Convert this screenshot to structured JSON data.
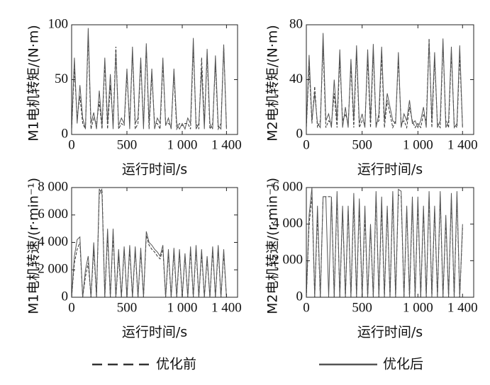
{
  "chart_data": [
    {
      "type": "line",
      "ylabel": "M1电机转矩/(N·m)",
      "xlabel": "运行时间/s",
      "x": [
        0,
        25,
        50,
        75,
        100,
        125,
        150,
        175,
        200,
        225,
        250,
        275,
        300,
        325,
        350,
        375,
        400,
        425,
        450,
        475,
        500,
        525,
        550,
        575,
        600,
        625,
        650,
        675,
        700,
        725,
        750,
        775,
        800,
        825,
        850,
        875,
        900,
        925,
        950,
        975,
        1000,
        1025,
        1050,
        1075,
        1100,
        1125,
        1150,
        1175,
        1200,
        1225,
        1250,
        1275,
        1300,
        1325,
        1350,
        1375,
        1400
      ],
      "xlim": [
        0,
        1500
      ],
      "xticks": [
        0,
        500,
        {
          "value": 1000,
          "label": "1 000"
        },
        {
          "value": 1400,
          "label": "1 400"
        }
      ],
      "ylim": [
        0,
        100
      ],
      "yticks": [
        0,
        50,
        100
      ],
      "series": [
        {
          "name": "优化前",
          "dashed": true,
          "color": "#333333",
          "values": [
            5,
            60,
            15,
            35,
            10,
            5,
            90,
            5,
            15,
            10,
            30,
            5,
            65,
            5,
            45,
            10,
            80,
            5,
            10,
            8,
            55,
            10,
            75,
            5,
            10,
            65,
            8,
            80,
            5,
            55,
            10,
            10,
            5,
            65,
            10,
            10,
            8,
            55,
            5,
            10,
            8,
            10,
            10,
            5,
            80,
            10,
            5,
            70,
            10,
            72,
            5,
            10,
            65,
            5,
            10,
            80,
            5
          ]
        },
        {
          "name": "优化后",
          "dashed": false,
          "color": "#555555",
          "values": [
            5,
            70,
            10,
            45,
            15,
            5,
            97,
            10,
            20,
            5,
            40,
            8,
            70,
            10,
            55,
            5,
            75,
            8,
            15,
            10,
            60,
            5,
            80,
            10,
            15,
            70,
            5,
            83,
            10,
            60,
            5,
            15,
            10,
            70,
            8,
            15,
            5,
            60,
            10,
            5,
            10,
            5,
            15,
            10,
            88,
            5,
            10,
            60,
            5,
            78,
            10,
            5,
            72,
            8,
            5,
            82,
            5
          ]
        }
      ]
    },
    {
      "type": "line",
      "ylabel": "M2电机转矩/(N·m)",
      "xlabel": "运行时间/s",
      "x": [
        0,
        25,
        50,
        75,
        100,
        125,
        150,
        175,
        200,
        225,
        250,
        275,
        300,
        325,
        350,
        375,
        400,
        425,
        450,
        475,
        500,
        525,
        550,
        575,
        600,
        625,
        650,
        675,
        700,
        725,
        750,
        775,
        800,
        825,
        850,
        875,
        900,
        925,
        950,
        975,
        1000,
        1025,
        1050,
        1075,
        1100,
        1125,
        1150,
        1175,
        1200,
        1225,
        1250,
        1275,
        1300,
        1325,
        1350,
        1375,
        1400
      ],
      "xlim": [
        0,
        1500
      ],
      "xticks": [
        0,
        500,
        {
          "value": 1000,
          "label": "1 000"
        },
        {
          "value": 1400,
          "label": "1 400"
        }
      ],
      "ylim": [
        0,
        80
      ],
      "yticks": [
        0,
        40,
        80
      ],
      "series": [
        {
          "dashed": true,
          "color": "#333333",
          "values": [
            5,
            50,
            8,
            35,
            5,
            10,
            65,
            5,
            10,
            8,
            30,
            5,
            55,
            10,
            15,
            8,
            50,
            5,
            60,
            5,
            10,
            8,
            55,
            5,
            60,
            8,
            10,
            58,
            5,
            25,
            15,
            5,
            10,
            55,
            8,
            10,
            5,
            20,
            10,
            5,
            8,
            5,
            15,
            10,
            70,
            5,
            55,
            8,
            5,
            66,
            10,
            5,
            60,
            8,
            5,
            58,
            5
          ]
        },
        {
          "dashed": false,
          "color": "#555555",
          "values": [
            5,
            58,
            10,
            30,
            8,
            5,
            74,
            10,
            15,
            5,
            40,
            10,
            62,
            5,
            20,
            5,
            55,
            10,
            65,
            8,
            15,
            5,
            62,
            10,
            66,
            5,
            15,
            64,
            10,
            30,
            20,
            10,
            8,
            60,
            5,
            15,
            10,
            25,
            8,
            10,
            5,
            10,
            20,
            5,
            68,
            10,
            60,
            5,
            10,
            70,
            5,
            10,
            64,
            5,
            8,
            65,
            5
          ]
        }
      ]
    },
    {
      "type": "line",
      "ylabel": "M1电机转速/(r·min⁻¹)",
      "xlabel": "运行时间/s",
      "x": [
        0,
        25,
        50,
        75,
        100,
        125,
        150,
        175,
        200,
        225,
        250,
        275,
        300,
        325,
        350,
        375,
        400,
        425,
        450,
        475,
        500,
        525,
        550,
        575,
        600,
        625,
        650,
        675,
        700,
        725,
        750,
        775,
        800,
        825,
        850,
        875,
        900,
        925,
        950,
        975,
        1000,
        1025,
        1050,
        1075,
        1100,
        1125,
        1150,
        1175,
        1200,
        1225,
        1250,
        1275,
        1300,
        1325,
        1350,
        1375,
        1400
      ],
      "xlim": [
        0,
        1500
      ],
      "xticks": [
        0,
        500,
        {
          "value": 1000,
          "label": "1 000"
        },
        {
          "value": 1400,
          "label": "1 400"
        }
      ],
      "ylim": [
        0,
        8000
      ],
      "yticks": [
        0,
        {
          "value": 2000,
          "label": "2 000"
        },
        {
          "value": 4000,
          "label": "4 000"
        },
        {
          "value": 6000,
          "label": "6 000"
        },
        {
          "value": 8000,
          "label": "8 000"
        }
      ],
      "series": [
        {
          "dashed": true,
          "color": "#333333",
          "values": [
            0,
            2500,
            3500,
            4000,
            0,
            1500,
            2500,
            0,
            3500,
            0,
            7500,
            7900,
            0,
            4500,
            0,
            4500,
            0,
            3000,
            0,
            3500,
            0,
            3500,
            0,
            3400,
            0,
            3300,
            0,
            4500,
            3800,
            3500,
            3300,
            3000,
            2800,
            3500,
            0,
            3200,
            0,
            3300,
            0,
            3200,
            0,
            3000,
            0,
            3400,
            0,
            3500,
            0,
            3200,
            0,
            2800,
            0,
            3400,
            0,
            3500,
            0,
            3200,
            0
          ]
        },
        {
          "dashed": false,
          "color": "#555555",
          "values": [
            0,
            3000,
            4200,
            4400,
            0,
            2000,
            3000,
            0,
            4000,
            0,
            7900,
            7500,
            0,
            5000,
            0,
            5000,
            0,
            3500,
            0,
            3700,
            0,
            3800,
            0,
            3700,
            0,
            3600,
            0,
            4800,
            4000,
            3800,
            3500,
            3300,
            3000,
            3800,
            0,
            3500,
            0,
            3600,
            0,
            3500,
            0,
            3200,
            0,
            3700,
            0,
            3800,
            0,
            3500,
            0,
            3000,
            0,
            3700,
            0,
            3800,
            0,
            3500,
            0
          ]
        }
      ]
    },
    {
      "type": "line",
      "ylabel": "M2电机转速/(r·min⁻¹)",
      "xlabel": "运行时间/s",
      "x": [
        0,
        25,
        50,
        75,
        100,
        125,
        150,
        175,
        200,
        225,
        250,
        275,
        300,
        325,
        350,
        375,
        400,
        425,
        450,
        475,
        500,
        525,
        550,
        575,
        600,
        625,
        650,
        675,
        700,
        725,
        750,
        775,
        800,
        825,
        850,
        875,
        900,
        925,
        950,
        975,
        1000,
        1025,
        1050,
        1075,
        1100,
        1125,
        1150,
        1175,
        1200,
        1225,
        1250,
        1275,
        1300,
        1325,
        1350,
        1375,
        1400
      ],
      "xlim": [
        0,
        1500
      ],
      "xticks": [
        0,
        500,
        {
          "value": 1000,
          "label": "1 000"
        },
        {
          "value": 1400,
          "label": "1 400"
        }
      ],
      "ylim": [
        0,
        6000
      ],
      "yticks": [
        0,
        {
          "value": 2000,
          "label": "2 000"
        },
        {
          "value": 4000,
          "label": "4 000"
        },
        {
          "value": 6000,
          "label": "6 000"
        }
      ],
      "series": [
        {
          "dashed": true,
          "color": "#333333",
          "values": [
            0,
            4000,
            5500,
            0,
            4500,
            0,
            5500,
            5500,
            5500,
            5500,
            0,
            5500,
            0,
            4800,
            0,
            4800,
            0,
            5200,
            0,
            5000,
            0,
            4500,
            0,
            3800,
            0,
            5500,
            0,
            5000,
            0,
            4800,
            0,
            5500,
            0,
            5600,
            5500,
            0,
            4800,
            0,
            5200,
            0,
            5200,
            0,
            4800,
            0,
            5500,
            0,
            4800,
            0,
            5500,
            0,
            4200,
            0,
            5400,
            0,
            5500,
            0,
            3800
          ]
        },
        {
          "dashed": false,
          "color": "#555555",
          "values": [
            0,
            4500,
            6000,
            0,
            5000,
            0,
            5500,
            5500,
            0,
            5500,
            0,
            5800,
            0,
            5000,
            0,
            5000,
            0,
            5700,
            0,
            5400,
            0,
            5000,
            0,
            4000,
            0,
            5800,
            0,
            5500,
            0,
            5000,
            0,
            5800,
            0,
            5900,
            5800,
            0,
            5000,
            0,
            5500,
            0,
            5500,
            0,
            5000,
            0,
            5800,
            0,
            5000,
            0,
            5800,
            0,
            4500,
            0,
            5700,
            0,
            5800,
            0,
            4000
          ]
        }
      ]
    }
  ]
}
